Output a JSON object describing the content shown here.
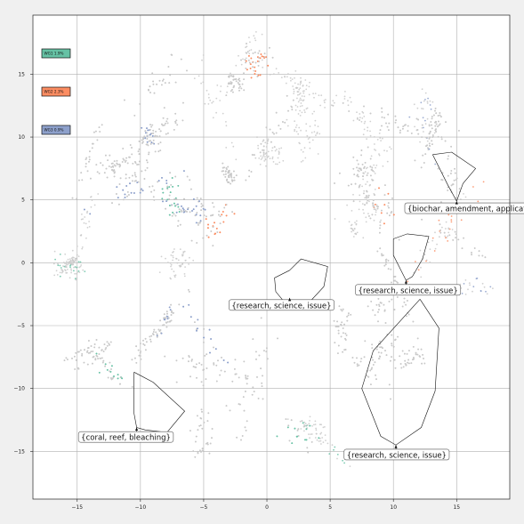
{
  "chart_data": {
    "type": "scatter",
    "title": "",
    "xlabel": "",
    "ylabel": "",
    "xlim": [
      -18.5,
      19.2
    ],
    "ylim": [
      -18.8,
      19.7
    ],
    "grid": true,
    "x_ticks": [
      -15,
      -10,
      -5,
      0,
      5,
      10,
      15
    ],
    "y_ticks": [
      -15,
      -10,
      -5,
      0,
      5,
      10,
      15
    ],
    "x_tick_labels": [
      "−15",
      "−10",
      "−5",
      "0",
      "5",
      "10",
      "15"
    ],
    "y_tick_labels": [
      "−15",
      "−10",
      "−5",
      "0",
      "5",
      "10",
      "15"
    ],
    "background_color": "#c8c8c8",
    "legend_placement": "upper-left",
    "series": [
      {
        "name": "WG1 1.9%",
        "color": "#66c2a5"
      },
      {
        "name": "WG2 2.3%",
        "color": "#fc8d62"
      },
      {
        "name": "WG3 0.9%",
        "color": "#8da0cb"
      }
    ],
    "annotations": [
      {
        "text": "{biochar, amendment, application}",
        "anchor": [
          15.0,
          4.9
        ],
        "label_at": [
          10.9,
          4.2
        ],
        "hull": [
          [
            13.1,
            8.6
          ],
          [
            14.6,
            8.8
          ],
          [
            16.5,
            7.5
          ],
          [
            15.5,
            6.3
          ],
          [
            15.0,
            4.9
          ],
          [
            14.3,
            6.2
          ],
          [
            13.1,
            8.6
          ]
        ]
      },
      {
        "text": "{research, science, issue}",
        "anchor": [
          1.8,
          -2.8
        ],
        "label_at": [
          -3.0,
          -3.5
        ],
        "hull": [
          [
            1.8,
            -0.6
          ],
          [
            2.7,
            0.3
          ],
          [
            4.8,
            -0.3
          ],
          [
            4.5,
            -1.9
          ],
          [
            3.3,
            -3.2
          ],
          [
            1.7,
            -3.5
          ],
          [
            0.7,
            -2.3
          ],
          [
            0.6,
            -1.2
          ],
          [
            1.8,
            -0.6
          ]
        ]
      },
      {
        "text": "{research, science, issue}",
        "anchor": [
          11.0,
          -1.4
        ],
        "label_at": [
          7.0,
          -2.3
        ],
        "hull": [
          [
            10.0,
            1.9
          ],
          [
            11.1,
            2.3
          ],
          [
            12.8,
            2.1
          ],
          [
            12.3,
            0.3
          ],
          [
            11.5,
            -1.1
          ],
          [
            11.0,
            -1.4
          ],
          [
            10.0,
            0.6
          ],
          [
            10.0,
            1.9
          ]
        ]
      },
      {
        "text": "{research, science, issue}",
        "anchor": [
          10.2,
          -14.5
        ],
        "label_at": [
          6.1,
          -15.4
        ],
        "hull": [
          [
            12.1,
            -2.9
          ],
          [
            13.6,
            -5.2
          ],
          [
            13.3,
            -10.2
          ],
          [
            12.2,
            -13.1
          ],
          [
            10.2,
            -14.5
          ],
          [
            9.0,
            -13.8
          ],
          [
            7.5,
            -10.0
          ],
          [
            8.4,
            -7.0
          ],
          [
            12.1,
            -2.9
          ]
        ]
      },
      {
        "text": "{coral, reef, bleaching}",
        "anchor": [
          -10.3,
          -13.1
        ],
        "label_at": [
          -14.9,
          -14.0
        ],
        "hull": [
          [
            -10.5,
            -8.7
          ],
          [
            -9.0,
            -9.5
          ],
          [
            -6.5,
            -11.8
          ],
          [
            -7.9,
            -13.5
          ],
          [
            -9.6,
            -13.3
          ],
          [
            -10.3,
            -13.1
          ],
          [
            -10.5,
            -12.0
          ],
          [
            -10.5,
            -8.7
          ]
        ]
      }
    ]
  }
}
